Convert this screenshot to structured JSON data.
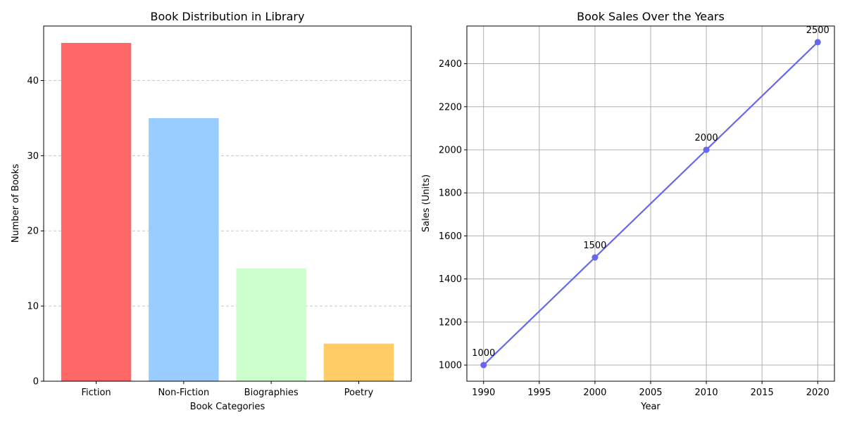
{
  "chart_data": [
    {
      "type": "bar",
      "title": "Book Distribution in Library",
      "xlabel": "Book Categories",
      "ylabel": "Number of Books",
      "categories": [
        "Fiction",
        "Non-Fiction",
        "Biographies",
        "Poetry"
      ],
      "values": [
        45,
        35,
        15,
        5
      ],
      "colors": [
        "#ff6666",
        "#99ccff",
        "#ccffcc",
        "#ffcc66"
      ],
      "ylim": [
        0,
        47.25
      ],
      "yticks": [
        0,
        10,
        20,
        30,
        40
      ],
      "grid": "y-dashed"
    },
    {
      "type": "line",
      "title": "Book Sales Over the Years",
      "xlabel": "Year",
      "ylabel": "Sales (Units)",
      "x": [
        1990,
        2000,
        2010,
        2020
      ],
      "values": [
        1000,
        1500,
        2000,
        2500
      ],
      "data_labels": [
        "1000",
        "1500",
        "2000",
        "2500"
      ],
      "color": "#6666ee",
      "xlim": [
        1988.5,
        2021.5
      ],
      "ylim": [
        925,
        2575
      ],
      "xticks": [
        1990,
        1995,
        2000,
        2005,
        2010,
        2015,
        2020
      ],
      "yticks": [
        1000,
        1200,
        1400,
        1600,
        1800,
        2000,
        2200,
        2400
      ],
      "grid": "both"
    }
  ]
}
